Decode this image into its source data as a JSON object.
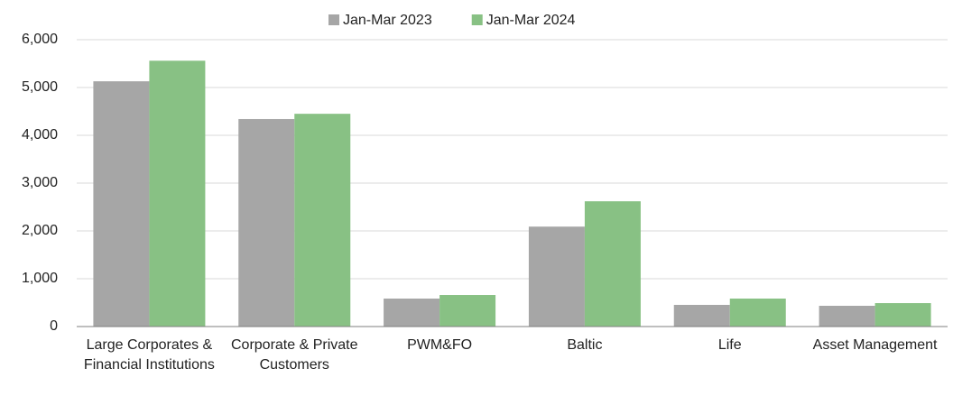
{
  "chart_data": {
    "type": "bar",
    "categories": [
      "Large Corporates & Financial Institutions",
      "Corporate & Private Customers",
      "PWM&FO",
      "Baltic",
      "Life",
      "Asset Management"
    ],
    "series": [
      {
        "name": "Jan-Mar 2023",
        "color": "#a6a6a6",
        "values": [
          5130,
          4340,
          585,
          2090,
          453,
          434
        ]
      },
      {
        "name": "Jan-Mar 2024",
        "color": "#88c184",
        "values": [
          5560,
          4450,
          660,
          2620,
          585,
          490
        ]
      }
    ],
    "ylim": [
      0,
      6000
    ],
    "yticks": [
      0,
      {
        "value": 1000,
        "label": "1,000"
      },
      {
        "value": 2000,
        "label": "2,000"
      },
      {
        "value": 3000,
        "label": "3,000"
      },
      {
        "value": 4000,
        "label": "4,000"
      },
      {
        "value": 5000,
        "label": "5,000"
      },
      {
        "value": 6000,
        "label": "6,000"
      }
    ],
    "grid": true,
    "legend": "top"
  }
}
